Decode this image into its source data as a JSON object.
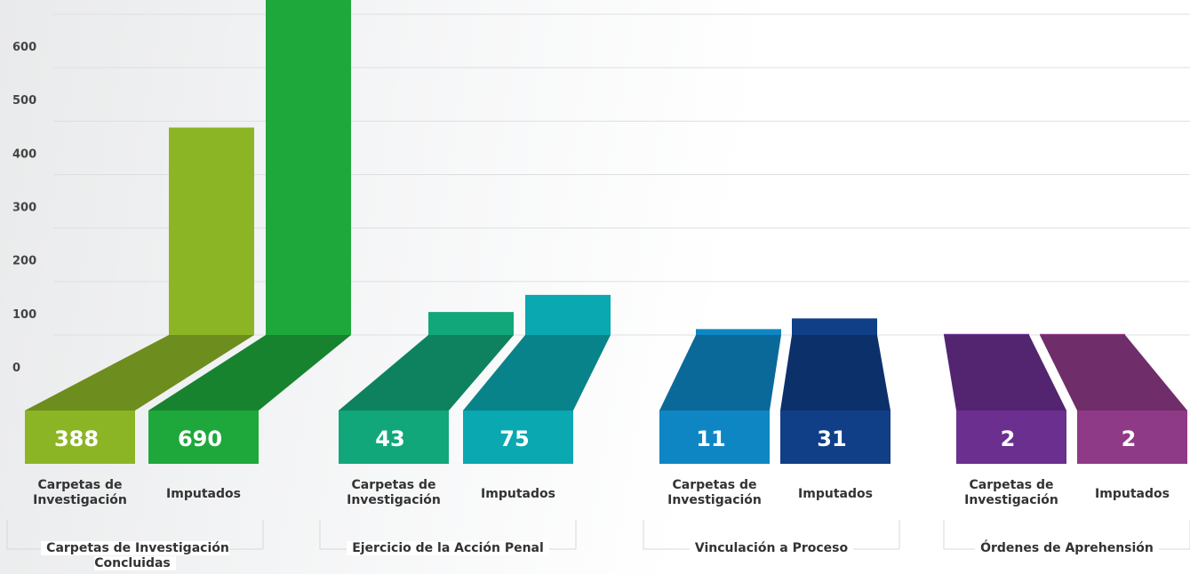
{
  "chart_data": {
    "type": "bar3d",
    "categories": [
      "Carpetas de Investigación Concluidas",
      "Ejercicio de la Acción Penal",
      "Vinculación a Proceso",
      "Órdenes de Aprehensión"
    ],
    "series": [
      {
        "name": "Carpetas de Investigación",
        "values": [
          388,
          43,
          11,
          2
        ],
        "colors": [
          "#8cb526",
          "#12a77a",
          "#0e86c4",
          "#6a2f8f"
        ]
      },
      {
        "name": "Imputados",
        "values": [
          690,
          75,
          31,
          2
        ],
        "colors": [
          "#1ea83c",
          "#0aa8b0",
          "#103f88",
          "#8e3a86"
        ]
      }
    ],
    "ylim": [
      0,
      600
    ],
    "yticks": [
      0,
      100,
      200,
      300,
      400,
      500,
      600
    ],
    "grid": true
  }
}
